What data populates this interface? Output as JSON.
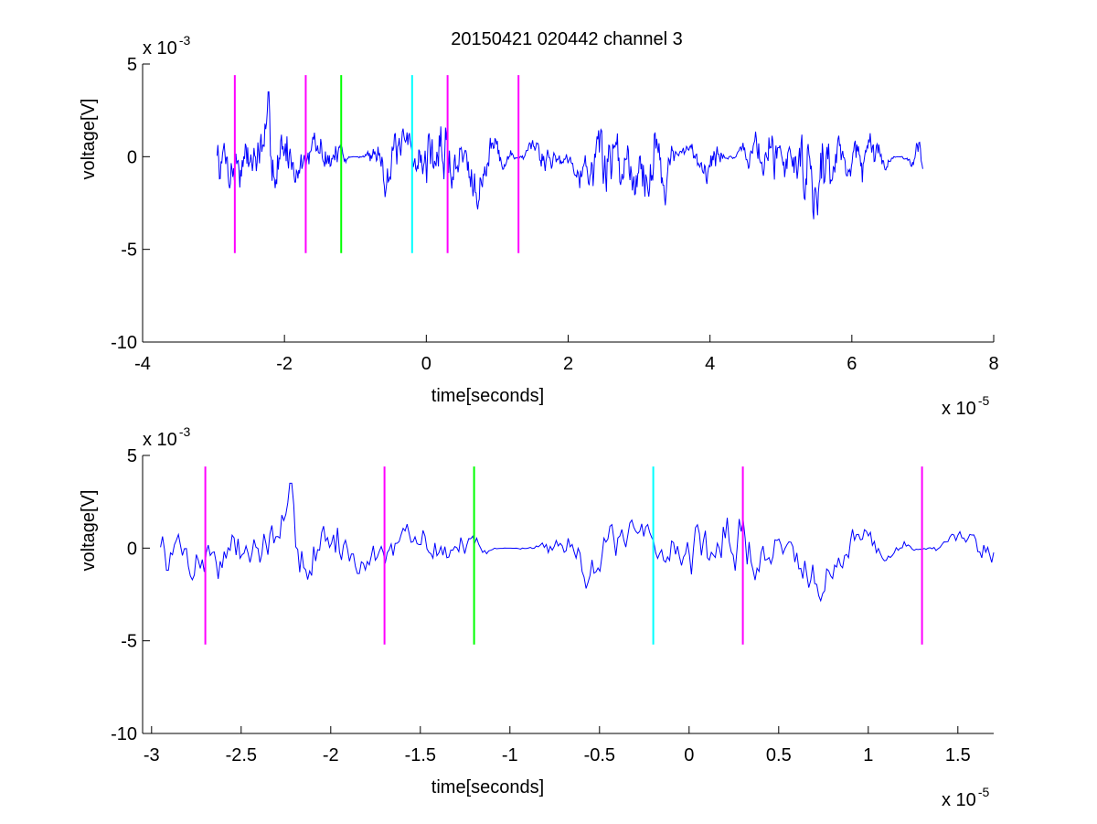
{
  "figure": {
    "title": "20150421 020442 channel 3"
  },
  "chart_data": [
    {
      "type": "line",
      "xlabel": "time[seconds]",
      "ylabel": "voltage[V]",
      "x_multiplier_label": "x 10",
      "x_multiplier_exp": "-5",
      "y_multiplier_label": "x 10",
      "y_multiplier_exp": "-3",
      "xlim": [
        -4,
        8
      ],
      "ylim": [
        -10,
        5
      ],
      "xticks": [
        -4,
        -2,
        0,
        2,
        4,
        6,
        8
      ],
      "xtick_labels": [
        "-4",
        "-2",
        "0",
        "2",
        "4",
        "6",
        "8"
      ],
      "yticks": [
        -10,
        -5,
        0,
        5
      ],
      "ytick_labels": [
        "-10",
        "-5",
        "0",
        "5"
      ],
      "grid": false,
      "series_color": "#0000ff",
      "signal": {
        "x_start": -2.95,
        "x_end": 7.0,
        "seed": 7,
        "n": 900
      },
      "markers": [
        {
          "x": -2.7,
          "ymin": -5.2,
          "ymax": 4.4,
          "color": "#ff00ff"
        },
        {
          "x": -1.7,
          "ymin": -5.2,
          "ymax": 4.4,
          "color": "#ff00ff"
        },
        {
          "x": -1.2,
          "ymin": -5.2,
          "ymax": 4.4,
          "color": "#00ff00"
        },
        {
          "x": -0.2,
          "ymin": -5.2,
          "ymax": 4.4,
          "color": "#00ffff"
        },
        {
          "x": 0.3,
          "ymin": -5.2,
          "ymax": 4.4,
          "color": "#ff00ff"
        },
        {
          "x": 1.3,
          "ymin": -5.2,
          "ymax": 4.4,
          "color": "#ff00ff"
        }
      ]
    },
    {
      "type": "line",
      "xlabel": "time[seconds]",
      "ylabel": "voltage[V]",
      "x_multiplier_label": "x 10",
      "x_multiplier_exp": "-5",
      "y_multiplier_label": "x 10",
      "y_multiplier_exp": "-3",
      "xlim": [
        -3.05,
        1.7
      ],
      "ylim": [
        -10,
        5
      ],
      "xticks": [
        -3,
        -2.5,
        -2,
        -1.5,
        -1,
        -0.5,
        0,
        0.5,
        1,
        1.5
      ],
      "xtick_labels": [
        "-3",
        "-2.5",
        "-2",
        "-1.5",
        "-1",
        "-0.5",
        "0",
        "0.5",
        "1",
        "1.5"
      ],
      "yticks": [
        -10,
        -5,
        0,
        5
      ],
      "ytick_labels": [
        "-10",
        "-5",
        "0",
        "5"
      ],
      "grid": false,
      "series_color": "#0000ff",
      "signal": {
        "x_start": -2.95,
        "x_end": 1.7,
        "seed": 7,
        "n": 420
      },
      "markers": [
        {
          "x": -2.7,
          "ymin": -5.2,
          "ymax": 4.4,
          "color": "#ff00ff"
        },
        {
          "x": -1.7,
          "ymin": -5.2,
          "ymax": 4.4,
          "color": "#ff00ff"
        },
        {
          "x": -1.2,
          "ymin": -5.2,
          "ymax": 4.4,
          "color": "#00ff00"
        },
        {
          "x": -0.2,
          "ymin": -5.2,
          "ymax": 4.4,
          "color": "#00ffff"
        },
        {
          "x": 0.3,
          "ymin": -5.2,
          "ymax": 4.4,
          "color": "#ff00ff"
        },
        {
          "x": 1.3,
          "ymin": -5.2,
          "ymax": 4.4,
          "color": "#ff00ff"
        }
      ]
    }
  ]
}
